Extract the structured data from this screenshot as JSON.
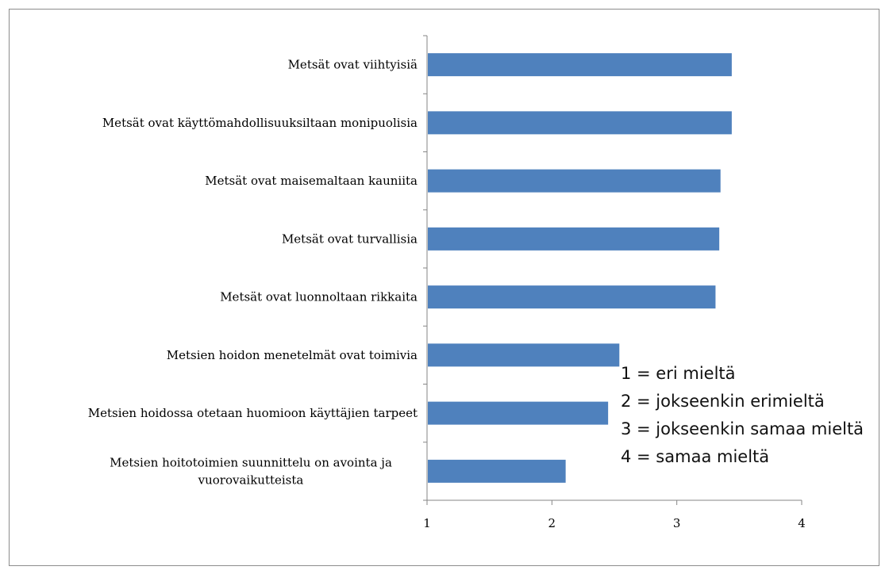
{
  "chart_data": {
    "type": "bar",
    "orientation": "horizontal",
    "categories": [
      "Metsät ovat viihtyisiä",
      "Metsät ovat käyttömahdollisuuksiltaan monipuolisia",
      "Metsät ovat maisemaltaan kauniita",
      "Metsät ovat turvallisia",
      "Metsät ovat luonnoltaan rikkaita",
      "Metsien hoidon menetelmät ovat toimivia",
      "Metsien hoidossa otetaan huomioon käyttäjien tarpeet",
      "Metsien hoitotoimien suunnittelu on avointa ja vuorovaikutteista"
    ],
    "values": [
      3.44,
      3.44,
      3.35,
      3.34,
      3.31,
      2.54,
      2.45,
      2.11
    ],
    "xlim": [
      1,
      4
    ],
    "xticks": [
      "1",
      "2",
      "3",
      "4"
    ],
    "bar_color": "#4f81bd",
    "annotation_lines": [
      "1 = eri mieltä",
      "2 = jokseenkin erimieltä",
      "3 = jokseenkin samaa mieltä",
      "4 = samaa mieltä"
    ],
    "grid": false
  }
}
